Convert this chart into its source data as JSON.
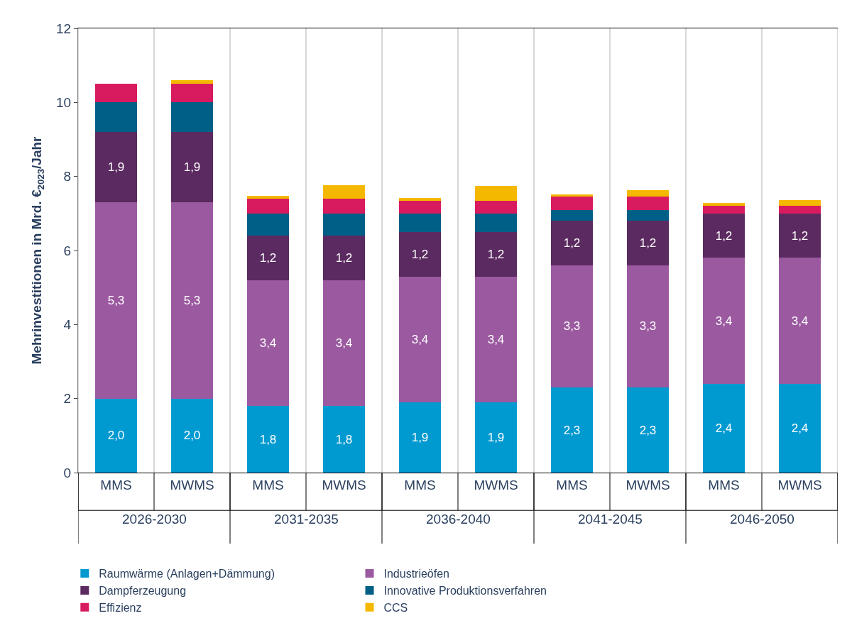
{
  "chart_data": {
    "type": "bar",
    "stacked": true,
    "ylabel": "Mehrinvestitionen in Mrd. €$_{2023}$/Jahr",
    "categories": [
      "MMS",
      "MWMS",
      "MMS",
      "MWMS",
      "MMS",
      "MWMS",
      "MMS",
      "MWMS",
      "MMS",
      "MWMS"
    ],
    "annotations": [
      "2026-2030",
      "2031-2035",
      "2036-2040",
      "2041-2045",
      "2046-2050"
    ],
    "ylim": [
      0,
      12
    ],
    "yticks": [
      0,
      2,
      4,
      6,
      8,
      10,
      12
    ],
    "legend": "bottom",
    "series": [
      {
        "name": "Raumwärme (Anlagen+Dämmung)",
        "color": "#0099d0",
        "values": [
          2.0,
          2.0,
          1.8,
          1.8,
          1.9,
          1.9,
          2.3,
          2.3,
          2.4,
          2.4
        ],
        "value_labels": [
          "2,0",
          "2,0",
          "1,8",
          "1,8",
          "1,9",
          "1,9",
          "2,3",
          "2,3",
          "2,4",
          "2,4"
        ]
      },
      {
        "name": "Industrieöfen",
        "color": "#9b59a0",
        "values": [
          5.3,
          5.3,
          3.4,
          3.4,
          3.4,
          3.4,
          3.3,
          3.3,
          3.4,
          3.4
        ],
        "value_labels": [
          "5,3",
          "5,3",
          "3,4",
          "3,4",
          "3,4",
          "3,4",
          "3,3",
          "3,3",
          "3,4",
          "3,4"
        ]
      },
      {
        "name": "Dampferzeugung",
        "color": "#5b2a60",
        "values": [
          1.9,
          1.9,
          1.2,
          1.2,
          1.2,
          1.2,
          1.2,
          1.2,
          1.2,
          1.2
        ],
        "value_labels": [
          "1,9",
          "1,9",
          "1,2",
          "1,2",
          "1,2",
          "1,2",
          "1,2",
          "1,2",
          "1,2",
          "1,2"
        ]
      },
      {
        "name": "Innovative Produktionsverfahren",
        "color": "#005f86",
        "values": [
          0.8,
          0.8,
          0.6,
          0.6,
          0.5,
          0.5,
          0.3,
          0.3,
          0.0,
          0.0
        ]
      },
      {
        "name": "Effizienz",
        "color": "#d81b5f",
        "values": [
          0.5,
          0.5,
          0.4,
          0.4,
          0.35,
          0.35,
          0.35,
          0.35,
          0.2,
          0.2
        ]
      },
      {
        "name": "CCS",
        "color": "#f5b800",
        "values": [
          0.0,
          0.1,
          0.08,
          0.36,
          0.06,
          0.39,
          0.07,
          0.18,
          0.08,
          0.17
        ]
      }
    ]
  }
}
